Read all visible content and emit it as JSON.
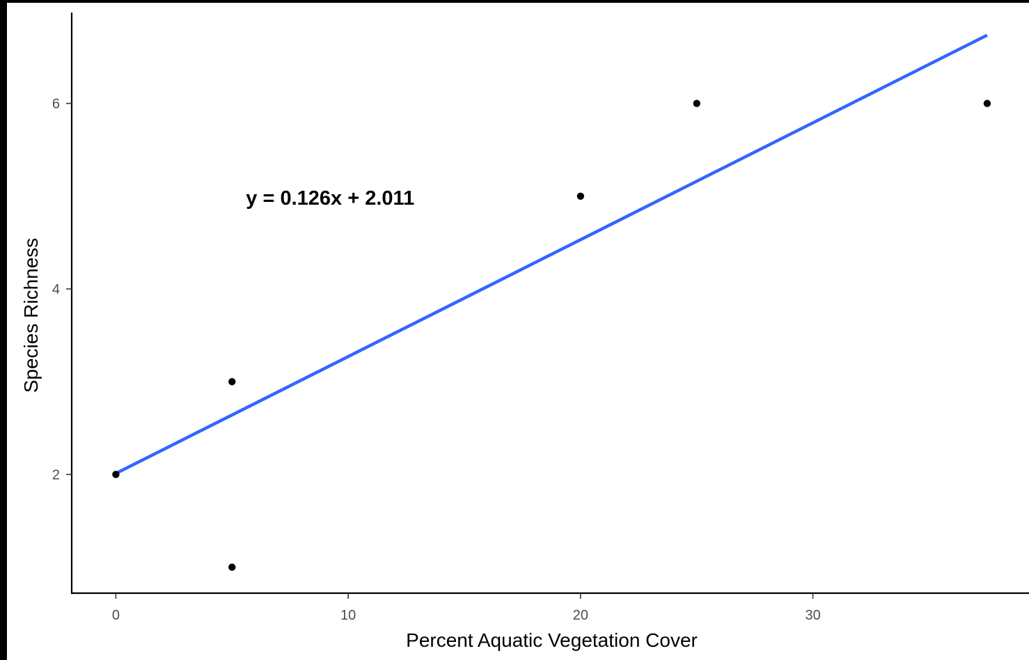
{
  "chart_data": {
    "type": "scatter",
    "title": "",
    "xlabel": "Percent Aquatic Vegetation Cover",
    "ylabel": "Species Richness",
    "xlim": [
      -1.9,
      39.3
    ],
    "ylim": [
      0.72,
      6.98
    ],
    "x_ticks": [
      0,
      10,
      20,
      30
    ],
    "y_ticks": [
      2,
      4,
      6
    ],
    "x_tick_labels": [
      "0",
      "10",
      "20",
      "30"
    ],
    "y_tick_labels": [
      "2",
      "4",
      "6"
    ],
    "grid": false,
    "legend": "none",
    "points": [
      {
        "x": 0,
        "y": 2
      },
      {
        "x": 5,
        "y": 3
      },
      {
        "x": 5,
        "y": 1
      },
      {
        "x": 20,
        "y": 5
      },
      {
        "x": 25,
        "y": 6
      },
      {
        "x": 37.5,
        "y": 6
      }
    ],
    "fit_line": {
      "slope": 0.126,
      "intercept": 2.011,
      "x_start": 0,
      "x_end": 37.5
    },
    "annotation": {
      "text": "y = 0.126x + 2.011",
      "x": 5.6,
      "y": 5
    },
    "colors": {
      "points": "#000000",
      "fit_line": "#3366ff",
      "axis": "#000000",
      "tick_label": "#4d4d4d",
      "background": "#ffffff",
      "outer_border": "#000000"
    }
  }
}
